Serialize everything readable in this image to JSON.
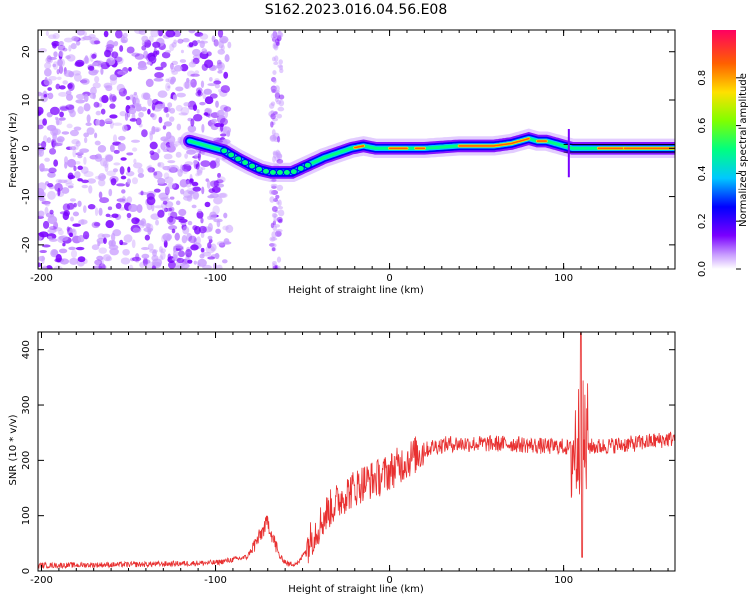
{
  "title": "S162.2023.016.04.56.E08",
  "chart_data": [
    {
      "type": "heatmap",
      "xlabel": "Height of straight line (km)",
      "ylabel": "Frequency (Hz)",
      "xlim": [
        -202,
        164
      ],
      "ylim": [
        -25,
        24.5
      ],
      "xticks": [
        -200,
        -100,
        0,
        100
      ],
      "yticks": [
        -20,
        -10,
        0,
        10,
        20
      ],
      "colorbar": {
        "label": "Normalized spectral amplitude",
        "range": [
          0,
          1
        ],
        "ticks": [
          "0.0",
          "0.2",
          "0.4",
          "0.6",
          "0.8"
        ],
        "colors": [
          "#ffffff",
          "#c89cff",
          "#7a00ff",
          "#0000ff",
          "#00c8ff",
          "#00ff80",
          "#80ff00",
          "#ffe000",
          "#ff6000",
          "#ff0060"
        ]
      },
      "ridge": {
        "x": [
          -115,
          -105,
          -95,
          -88,
          -80,
          -74,
          -68,
          -62,
          -56,
          -50,
          -44,
          -38,
          -30,
          -22,
          -15,
          -8,
          0,
          10,
          20,
          40,
          60,
          70,
          80,
          85,
          90,
          95,
          100,
          105,
          110,
          120,
          130,
          140,
          150,
          160,
          164
        ],
        "y": [
          1.5,
          0.5,
          -0.5,
          -2,
          -3.5,
          -4.5,
          -5,
          -5,
          -5,
          -4,
          -3,
          -2,
          -1,
          0,
          0.5,
          0,
          0,
          0,
          0,
          0.5,
          0.5,
          1,
          2,
          1.5,
          1.5,
          1,
          0.5,
          0,
          0,
          0,
          0,
          0,
          0,
          0,
          0
        ]
      }
    },
    {
      "type": "line",
      "xlabel": "Height of straight line (km)",
      "ylabel": "SNR (10 * v/v)",
      "xlim": [
        -202,
        164
      ],
      "ylim": [
        0,
        432
      ],
      "xticks": [
        -200,
        -100,
        0,
        100
      ],
      "yticks": [
        0,
        100,
        200,
        300,
        400
      ],
      "color": "#e83030",
      "series_envelope": {
        "x": [
          -202,
          -140,
          -100,
          -82,
          -75,
          -70,
          -67,
          -63,
          -58,
          -52,
          -45,
          -35,
          -25,
          -15,
          -5,
          5,
          15,
          25,
          35,
          50,
          70,
          90,
          100,
          105,
          108,
          110,
          112,
          115,
          120,
          140,
          164
        ],
        "y": [
          10,
          12,
          15,
          25,
          60,
          90,
          60,
          25,
          12,
          15,
          60,
          110,
          140,
          160,
          170,
          190,
          210,
          225,
          230,
          230,
          230,
          225,
          225,
          220,
          230,
          230,
          225,
          225,
          225,
          230,
          240
        ]
      }
    }
  ]
}
